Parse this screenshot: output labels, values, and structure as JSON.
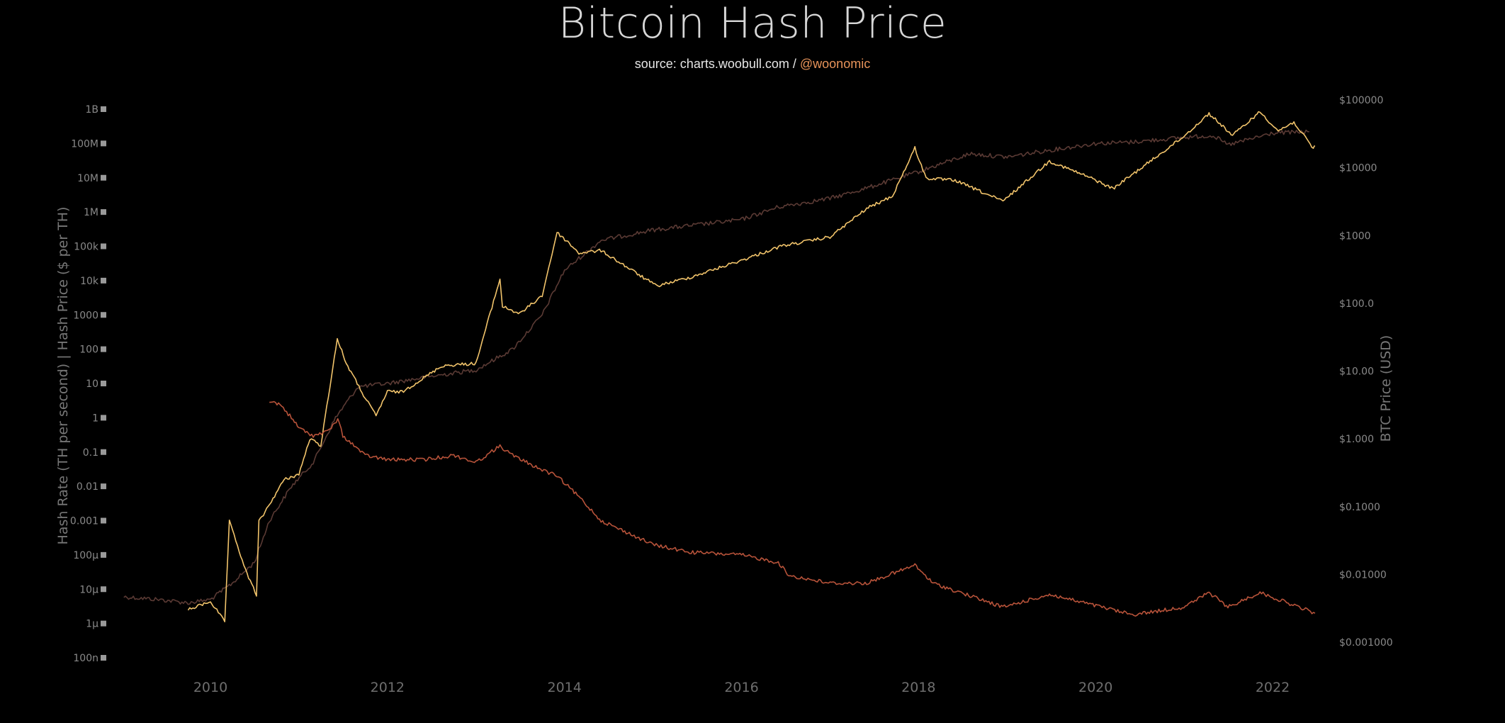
{
  "chart_data": {
    "type": "line",
    "title": "Bitcoin Hash Price",
    "subtitle": {
      "source_text": "source: charts.woobull.com / ",
      "handle": "@woonomic"
    },
    "y_left": {
      "label": "Hash Rate (TH per second)  |  Hash Price ($ per TH)",
      "scale": "log",
      "ylim": [
        1e-07,
        1000000000.0
      ],
      "ticks": [
        {
          "value": 1000000000.0,
          "label": "1B"
        },
        {
          "value": 100000000.0,
          "label": "100M"
        },
        {
          "value": 10000000.0,
          "label": "10M"
        },
        {
          "value": 1000000.0,
          "label": "1M"
        },
        {
          "value": 100000.0,
          "label": "100k"
        },
        {
          "value": 10000.0,
          "label": "10k"
        },
        {
          "value": 1000.0,
          "label": "1000"
        },
        {
          "value": 100.0,
          "label": "100"
        },
        {
          "value": 10.0,
          "label": "10"
        },
        {
          "value": 1,
          "label": "1"
        },
        {
          "value": 0.1,
          "label": "0.1"
        },
        {
          "value": 0.01,
          "label": "0.01"
        },
        {
          "value": 0.001,
          "label": "0.001"
        },
        {
          "value": 0.0001,
          "label": "100µ"
        },
        {
          "value": 1e-05,
          "label": "10µ"
        },
        {
          "value": 1e-06,
          "label": "1µ"
        },
        {
          "value": 1e-07,
          "label": "100n"
        }
      ]
    },
    "y_right": {
      "label": "BTC Price (USD)",
      "scale": "log",
      "ylim": [
        0.001,
        100000
      ],
      "ticks": [
        {
          "value": 100000,
          "label": "$100000"
        },
        {
          "value": 10000,
          "label": "$10000"
        },
        {
          "value": 1000,
          "label": "$1000"
        },
        {
          "value": 100,
          "label": "$100.0"
        },
        {
          "value": 10,
          "label": "$10.00"
        },
        {
          "value": 1,
          "label": "$1.000"
        },
        {
          "value": 0.1,
          "label": "$0.1000"
        },
        {
          "value": 0.01,
          "label": "$0.01000"
        },
        {
          "value": 0.001,
          "label": "$0.001000"
        }
      ]
    },
    "x": {
      "type": "date",
      "xlim": [
        "2009-01-01",
        "2022-07-01"
      ],
      "ticks": [
        "2010",
        "2012",
        "2014",
        "2016",
        "2018",
        "2020",
        "2022"
      ]
    },
    "series": [
      {
        "key": "hashrate",
        "axis": "left",
        "color": "#5a3a34",
        "points": [
          [
            "2009-01-09",
            6e-06
          ],
          [
            "2009-06-01",
            5e-06
          ],
          [
            "2009-10-01",
            4e-06
          ],
          [
            "2010-01-01",
            5e-06
          ],
          [
            "2010-04-01",
            1.5e-05
          ],
          [
            "2010-07-01",
            6e-05
          ],
          [
            "2010-09-01",
            0.001
          ],
          [
            "2010-12-01",
            0.01
          ],
          [
            "2011-03-01",
            0.05
          ],
          [
            "2011-06-01",
            1.0
          ],
          [
            "2011-09-01",
            8
          ],
          [
            "2012-01-01",
            10
          ],
          [
            "2012-06-01",
            15
          ],
          [
            "2013-01-01",
            25
          ],
          [
            "2013-06-01",
            100
          ],
          [
            "2013-10-01",
            1000
          ],
          [
            "2014-01-01",
            20000
          ],
          [
            "2014-06-01",
            150000
          ],
          [
            "2015-01-01",
            300000
          ],
          [
            "2016-01-01",
            600000
          ],
          [
            "2016-06-01",
            1400000
          ],
          [
            "2017-01-01",
            2500000
          ],
          [
            "2017-06-01",
            5000000
          ],
          [
            "2018-01-01",
            15000000
          ],
          [
            "2018-08-01",
            50000000
          ],
          [
            "2019-01-01",
            40000000
          ],
          [
            "2019-06-01",
            60000000
          ],
          [
            "2020-01-01",
            100000000
          ],
          [
            "2020-06-01",
            110000000
          ],
          [
            "2021-01-01",
            150000000
          ],
          [
            "2021-05-01",
            170000000
          ],
          [
            "2021-07-01",
            90000000
          ],
          [
            "2022-01-01",
            200000000
          ],
          [
            "2022-06-01",
            220000000
          ]
        ]
      },
      {
        "key": "btc_price",
        "axis": "right",
        "color": "#f2c46b",
        "points": [
          [
            "2009-10-01",
            0.003
          ],
          [
            "2010-01-01",
            0.004
          ],
          [
            "2010-03-01",
            0.002
          ],
          [
            "2010-03-20",
            0.06
          ],
          [
            "2010-06-01",
            0.01
          ],
          [
            "2010-07-10",
            0.005
          ],
          [
            "2010-07-20",
            0.06
          ],
          [
            "2010-08-01",
            0.07
          ],
          [
            "2010-11-01",
            0.25
          ],
          [
            "2011-01-01",
            0.3
          ],
          [
            "2011-02-15",
            1.0
          ],
          [
            "2011-04-01",
            0.8
          ],
          [
            "2011-06-08",
            30
          ],
          [
            "2011-07-15",
            13
          ],
          [
            "2011-10-01",
            4
          ],
          [
            "2011-11-15",
            2.2
          ],
          [
            "2012-01-01",
            5
          ],
          [
            "2012-03-01",
            4.9
          ],
          [
            "2012-08-15",
            12
          ],
          [
            "2013-01-01",
            13
          ],
          [
            "2013-04-10",
            230
          ],
          [
            "2013-04-20",
            90
          ],
          [
            "2013-07-01",
            70
          ],
          [
            "2013-10-01",
            130
          ],
          [
            "2013-12-01",
            1100
          ],
          [
            "2014-01-15",
            800
          ],
          [
            "2014-03-01",
            550
          ],
          [
            "2014-06-01",
            600
          ],
          [
            "2015-01-15",
            180
          ],
          [
            "2015-06-01",
            240
          ],
          [
            "2016-01-01",
            430
          ],
          [
            "2016-06-15",
            700
          ],
          [
            "2017-01-01",
            950
          ],
          [
            "2017-06-01",
            2500
          ],
          [
            "2017-09-15",
            3800
          ],
          [
            "2017-12-17",
            19500
          ],
          [
            "2018-02-01",
            7000
          ],
          [
            "2018-06-01",
            6500
          ],
          [
            "2018-12-15",
            3200
          ],
          [
            "2019-06-25",
            12500
          ],
          [
            "2019-12-15",
            7000
          ],
          [
            "2020-03-13",
            4900
          ],
          [
            "2020-08-01",
            11500
          ],
          [
            "2020-12-31",
            29000
          ],
          [
            "2021-04-14",
            63000
          ],
          [
            "2021-07-20",
            30000
          ],
          [
            "2021-11-10",
            67000
          ],
          [
            "2022-01-24",
            35000
          ],
          [
            "2022-03-30",
            47000
          ],
          [
            "2022-06-18",
            19000
          ],
          [
            "2022-06-25",
            21000
          ]
        ]
      },
      {
        "key": "hash_price",
        "axis": "left",
        "color": "#b8533a",
        "points": [
          [
            "2010-09-01",
            3.0
          ],
          [
            "2010-10-15",
            2.5
          ],
          [
            "2010-12-01",
            1.0
          ],
          [
            "2011-01-01",
            0.5
          ],
          [
            "2011-03-01",
            0.3
          ],
          [
            "2011-05-01",
            0.4
          ],
          [
            "2011-06-10",
            0.9
          ],
          [
            "2011-07-01",
            0.3
          ],
          [
            "2011-10-01",
            0.08
          ],
          [
            "2012-01-01",
            0.06
          ],
          [
            "2012-06-01",
            0.06
          ],
          [
            "2012-10-01",
            0.08
          ],
          [
            "2013-01-01",
            0.05
          ],
          [
            "2013-04-10",
            0.15
          ],
          [
            "2013-06-01",
            0.08
          ],
          [
            "2013-10-01",
            0.03
          ],
          [
            "2013-12-01",
            0.02
          ],
          [
            "2014-03-01",
            0.005
          ],
          [
            "2014-06-01",
            0.001
          ],
          [
            "2015-01-01",
            0.0002
          ],
          [
            "2015-06-01",
            0.00012
          ],
          [
            "2016-01-01",
            0.0001
          ],
          [
            "2016-06-01",
            6e-05
          ],
          [
            "2016-07-15",
            2.5e-05
          ],
          [
            "2017-01-01",
            1.5e-05
          ],
          [
            "2017-06-01",
            1.5e-05
          ],
          [
            "2017-12-17",
            5e-05
          ],
          [
            "2018-03-01",
            1.5e-05
          ],
          [
            "2018-12-15",
            3e-06
          ],
          [
            "2019-06-25",
            7e-06
          ],
          [
            "2020-03-13",
            2.5e-06
          ],
          [
            "2020-06-01",
            1.8e-06
          ],
          [
            "2020-12-31",
            3e-06
          ],
          [
            "2021-04-14",
            8e-06
          ],
          [
            "2021-07-01",
            3e-06
          ],
          [
            "2021-11-10",
            8e-06
          ],
          [
            "2022-06-25",
            2e-06
          ]
        ]
      }
    ],
    "grid": false,
    "legend": "none"
  }
}
